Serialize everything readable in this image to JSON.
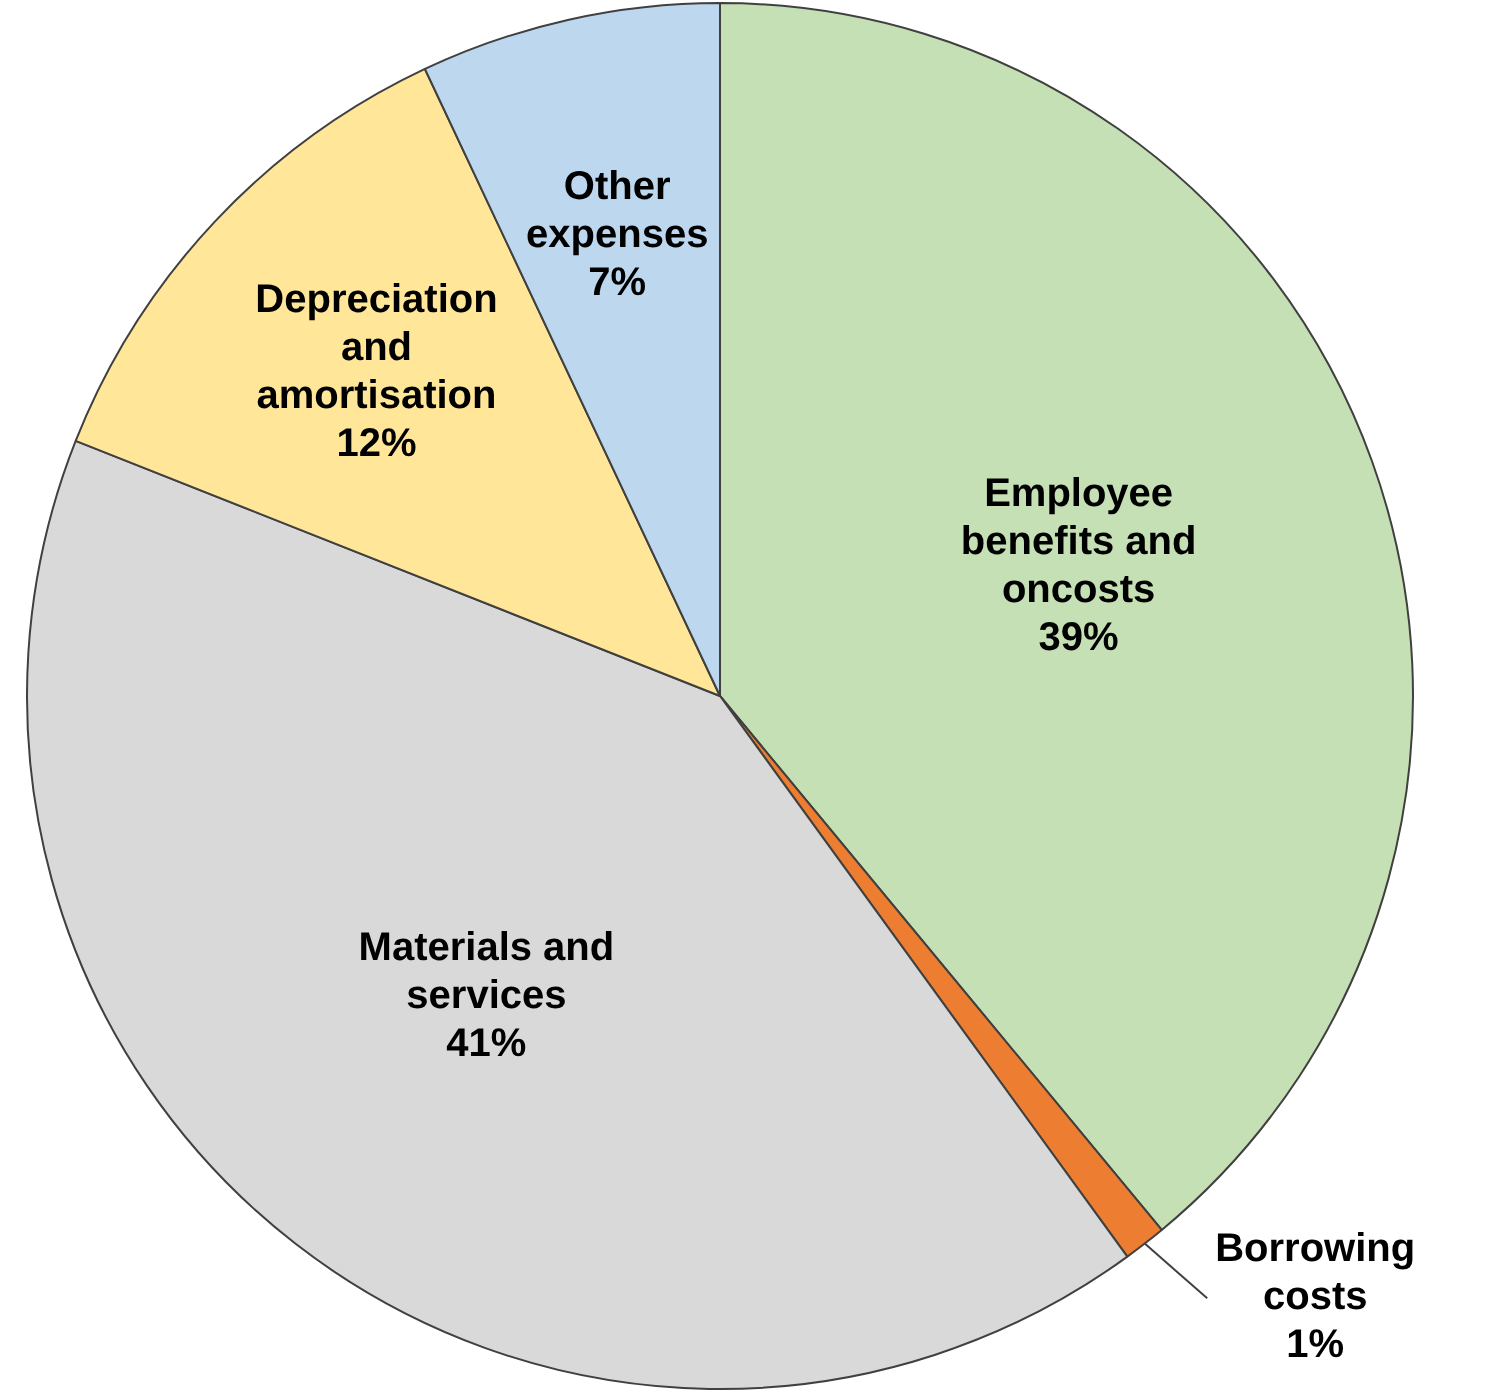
{
  "chart_data": {
    "type": "pie",
    "categories": [
      "Employee benefits and oncosts",
      "Borrowing costs",
      "Materials and services",
      "Depreciation and amortisation",
      "Other expenses"
    ],
    "values": [
      39,
      1,
      41,
      12,
      7
    ],
    "colors": [
      "#c5e0b4",
      "#ed7d31",
      "#d9d9d9",
      "#ffe699",
      "#bdd7ee"
    ],
    "value_labels": [
      "39%",
      "1%",
      "41%",
      "12%",
      "7%"
    ],
    "legend": false
  }
}
